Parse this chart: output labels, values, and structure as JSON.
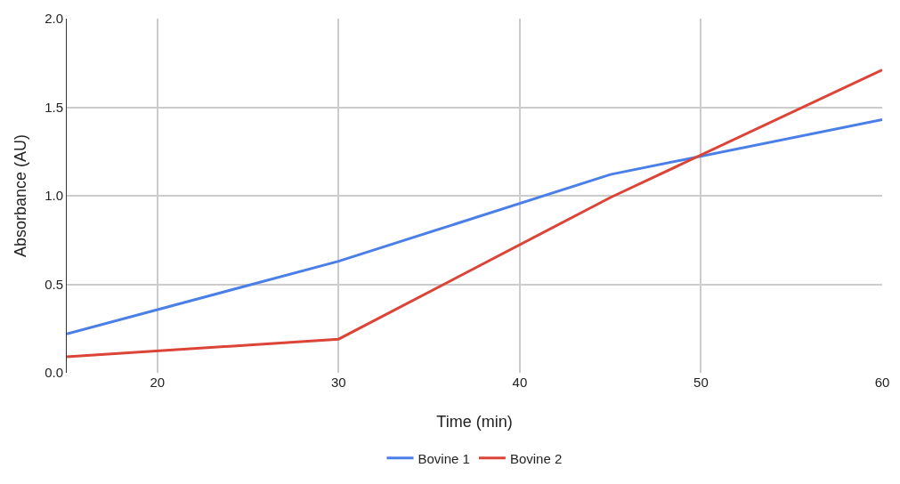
{
  "chart_data": {
    "type": "line",
    "xlabel": "Time (min)",
    "ylabel": "Absorbance (AU)",
    "series": [
      {
        "name": "Bovine 1",
        "color": "#4a7fe8",
        "x": [
          15,
          30,
          45,
          60
        ],
        "values": [
          0.22,
          0.63,
          1.12,
          1.43
        ]
      },
      {
        "name": "Bovine 2",
        "color": "#db4437",
        "x": [
          15,
          30,
          45,
          60
        ],
        "values": [
          0.09,
          0.19,
          0.99,
          1.71
        ]
      }
    ],
    "xlim": [
      15,
      60
    ],
    "xticks": [
      20,
      30,
      40,
      50,
      60
    ],
    "ylim": [
      0,
      2
    ],
    "yticks": [
      {
        "value": 0,
        "label": "0.0"
      },
      {
        "value": 0.5,
        "label": "0.5"
      },
      {
        "value": 1,
        "label": "1.0"
      },
      {
        "value": 1.5,
        "label": "1.5"
      },
      {
        "value": 2,
        "label": "2.0"
      }
    ],
    "grid": true,
    "legend": "bottom",
    "marker": "none",
    "line_style": "solid"
  }
}
